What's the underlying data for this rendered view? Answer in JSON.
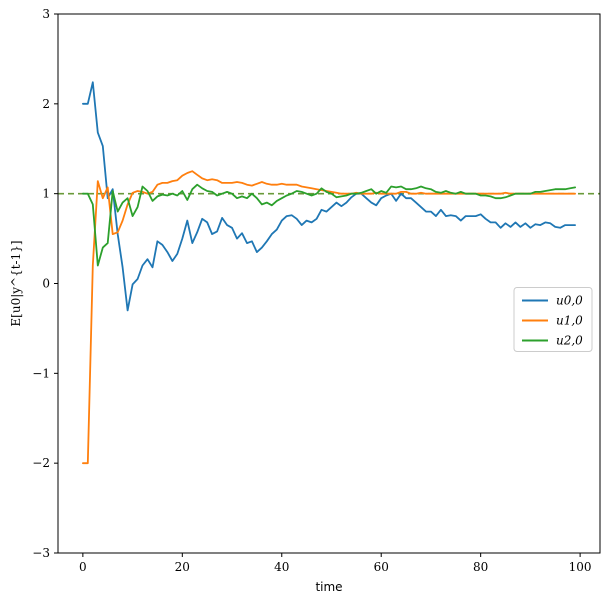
{
  "chart_data": {
    "type": "line",
    "title": "",
    "xlabel": "time",
    "ylabel": "E[u0|y^{t-1}]",
    "xlim": [
      -5,
      104
    ],
    "ylim": [
      -3,
      3
    ],
    "xticks": [
      0,
      20,
      40,
      60,
      80,
      100
    ],
    "yticks": [
      -3,
      -2,
      -1,
      0,
      1,
      2,
      3
    ],
    "ytick_labels": [
      "−3",
      "−2",
      "−1",
      "0",
      "1",
      "2",
      "3"
    ],
    "grid": false,
    "legend_position": "center-right",
    "reference_line": {
      "y": 1,
      "style": "dashed",
      "color": "#6a9a3a"
    },
    "series": [
      {
        "name": "u0,0",
        "color": "#1f77b4",
        "x": [
          0,
          1,
          2,
          3,
          4,
          5,
          6,
          7,
          8,
          9,
          10,
          11,
          12,
          13,
          14,
          15,
          16,
          17,
          18,
          19,
          20,
          21,
          22,
          23,
          24,
          25,
          26,
          27,
          28,
          29,
          30,
          31,
          32,
          33,
          34,
          35,
          36,
          37,
          38,
          39,
          40,
          41,
          42,
          43,
          44,
          45,
          46,
          47,
          48,
          49,
          50,
          51,
          52,
          53,
          54,
          55,
          56,
          57,
          58,
          59,
          60,
          61,
          62,
          63,
          64,
          65,
          66,
          67,
          68,
          69,
          70,
          71,
          72,
          73,
          74,
          75,
          76,
          77,
          78,
          79,
          80,
          81,
          82,
          83,
          84,
          85,
          86,
          87,
          88,
          89,
          90,
          91,
          92,
          93,
          94,
          95,
          96,
          97,
          98,
          99
        ],
        "values": [
          2.0,
          2.0,
          2.24,
          1.68,
          1.53,
          0.95,
          1.05,
          0.55,
          0.18,
          -0.3,
          -0.01,
          0.05,
          0.2,
          0.27,
          0.18,
          0.47,
          0.43,
          0.35,
          0.25,
          0.33,
          0.5,
          0.7,
          0.45,
          0.57,
          0.72,
          0.68,
          0.55,
          0.58,
          0.73,
          0.65,
          0.62,
          0.5,
          0.56,
          0.45,
          0.47,
          0.35,
          0.4,
          0.47,
          0.55,
          0.6,
          0.7,
          0.75,
          0.76,
          0.72,
          0.65,
          0.7,
          0.68,
          0.72,
          0.82,
          0.8,
          0.85,
          0.9,
          0.86,
          0.9,
          0.96,
          1.0,
          1.0,
          0.95,
          0.9,
          0.87,
          0.95,
          0.98,
          1.0,
          0.92,
          1.0,
          0.95,
          0.95,
          0.9,
          0.85,
          0.8,
          0.8,
          0.75,
          0.82,
          0.75,
          0.76,
          0.75,
          0.7,
          0.75,
          0.75,
          0.75,
          0.77,
          0.72,
          0.68,
          0.68,
          0.62,
          0.67,
          0.63,
          0.68,
          0.63,
          0.67,
          0.62,
          0.66,
          0.65,
          0.68,
          0.67,
          0.63,
          0.62,
          0.65,
          0.65,
          0.65
        ]
      },
      {
        "name": "u1,0",
        "color": "#ff7f0e",
        "x": [
          0,
          1,
          2,
          3,
          4,
          5,
          6,
          7,
          8,
          9,
          10,
          11,
          12,
          13,
          14,
          15,
          16,
          17,
          18,
          19,
          20,
          21,
          22,
          23,
          24,
          25,
          26,
          27,
          28,
          29,
          30,
          31,
          32,
          33,
          34,
          35,
          36,
          37,
          38,
          39,
          40,
          41,
          42,
          43,
          44,
          45,
          46,
          47,
          48,
          49,
          50,
          51,
          52,
          53,
          54,
          55,
          56,
          57,
          58,
          59,
          60,
          61,
          62,
          63,
          64,
          65,
          66,
          67,
          68,
          69,
          70,
          71,
          72,
          73,
          74,
          75,
          76,
          77,
          78,
          79,
          80,
          81,
          82,
          83,
          84,
          85,
          86,
          87,
          88,
          89,
          90,
          91,
          92,
          93,
          94,
          95,
          96,
          97,
          98,
          99
        ],
        "values": [
          -2.0,
          -2.0,
          0.2,
          1.14,
          0.95,
          1.07,
          0.55,
          0.57,
          0.7,
          0.88,
          1.01,
          1.03,
          1.02,
          1.0,
          1.02,
          1.1,
          1.12,
          1.12,
          1.14,
          1.15,
          1.2,
          1.23,
          1.25,
          1.21,
          1.17,
          1.15,
          1.16,
          1.15,
          1.12,
          1.12,
          1.12,
          1.13,
          1.12,
          1.1,
          1.09,
          1.11,
          1.13,
          1.11,
          1.1,
          1.1,
          1.11,
          1.1,
          1.1,
          1.1,
          1.08,
          1.07,
          1.06,
          1.05,
          1.04,
          1.03,
          1.02,
          1.01,
          1.0,
          1.0,
          1.0,
          1.01,
          1.0,
          1.0,
          1.0,
          1.01,
          1.0,
          1.0,
          1.0,
          1.0,
          1.02,
          1.02,
          1.0,
          1.0,
          1.01,
          1.0,
          1.0,
          1.0,
          1.0,
          1.0,
          1.0,
          1.0,
          1.0,
          1.0,
          1.0,
          1.0,
          1.0,
          1.0,
          1.0,
          1.0,
          1.0,
          1.01,
          1.0,
          1.0,
          1.0,
          1.0,
          1.0,
          1.0,
          1.0,
          1.0,
          1.0,
          1.0,
          1.0,
          1.0,
          1.0,
          1.0
        ]
      },
      {
        "name": "u2,0",
        "color": "#2ca02c",
        "x": [
          0,
          1,
          2,
          3,
          4,
          5,
          6,
          7,
          8,
          9,
          10,
          11,
          12,
          13,
          14,
          15,
          16,
          17,
          18,
          19,
          20,
          21,
          22,
          23,
          24,
          25,
          26,
          27,
          28,
          29,
          30,
          31,
          32,
          33,
          34,
          35,
          36,
          37,
          38,
          39,
          40,
          41,
          42,
          43,
          44,
          45,
          46,
          47,
          48,
          49,
          50,
          51,
          52,
          53,
          54,
          55,
          56,
          57,
          58,
          59,
          60,
          61,
          62,
          63,
          64,
          65,
          66,
          67,
          68,
          69,
          70,
          71,
          72,
          73,
          74,
          75,
          76,
          77,
          78,
          79,
          80,
          81,
          82,
          83,
          84,
          85,
          86,
          87,
          88,
          89,
          90,
          91,
          92,
          93,
          94,
          95,
          96,
          97,
          98,
          99
        ],
        "values": [
          1.0,
          1.0,
          0.88,
          0.2,
          0.4,
          0.45,
          1.03,
          0.8,
          0.9,
          0.95,
          0.75,
          0.85,
          1.08,
          1.03,
          0.92,
          0.97,
          0.99,
          0.98,
          1.0,
          0.98,
          1.03,
          0.93,
          1.05,
          1.1,
          1.06,
          1.03,
          1.02,
          0.98,
          1.0,
          1.02,
          1.0,
          0.95,
          0.97,
          0.95,
          1.0,
          0.95,
          0.88,
          0.9,
          0.87,
          0.92,
          0.95,
          0.98,
          1.0,
          1.03,
          1.02,
          1.0,
          0.98,
          1.0,
          1.06,
          1.02,
          1.0,
          0.96,
          0.97,
          0.98,
          1.0,
          1.0,
          1.01,
          1.03,
          1.05,
          1.0,
          1.03,
          1.01,
          1.08,
          1.07,
          1.08,
          1.05,
          1.05,
          1.06,
          1.08,
          1.06,
          1.05,
          1.02,
          1.01,
          1.03,
          1.01,
          1.0,
          1.02,
          1.0,
          1.0,
          1.0,
          0.98,
          0.98,
          0.97,
          0.95,
          0.95,
          0.96,
          0.98,
          1.0,
          1.0,
          1.0,
          1.0,
          1.02,
          1.02,
          1.03,
          1.04,
          1.05,
          1.05,
          1.05,
          1.06,
          1.07
        ]
      }
    ]
  }
}
